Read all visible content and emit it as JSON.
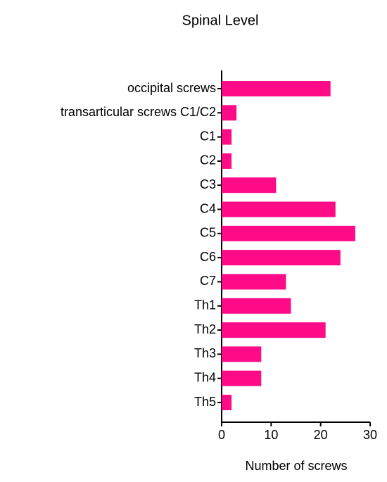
{
  "chart_data": {
    "type": "barh",
    "title": "Spinal Level",
    "x_label": "Number of screws",
    "categories": [
      "occipital screws",
      "transarticular screws C1/C2",
      "C1",
      "C2",
      "C3",
      "C4",
      "C5",
      "C6",
      "C7",
      "Th1",
      "Th2",
      "Th3",
      "Th4",
      "Th5"
    ],
    "values": [
      22,
      3,
      2,
      2,
      11,
      23,
      27,
      24,
      13,
      14,
      21,
      8,
      8,
      2
    ],
    "color": "#ff0a87",
    "xlim": [
      0,
      30
    ],
    "xticks": [
      0,
      10,
      20,
      30
    ]
  }
}
